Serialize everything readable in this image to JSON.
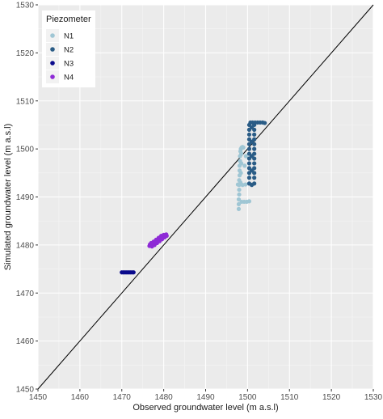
{
  "chart_data": {
    "type": "scatter",
    "xlabel": "Observed groundwater level (m a.s.l)",
    "ylabel": "Simulated groundwater level (m a.s.l)",
    "xlim": [
      1450,
      1530
    ],
    "ylim": [
      1450,
      1530
    ],
    "xticks": [
      1450,
      1460,
      1470,
      1480,
      1490,
      1500,
      1510,
      1520,
      1530
    ],
    "yticks": [
      1450,
      1460,
      1470,
      1480,
      1490,
      1500,
      1510,
      1520,
      1530
    ],
    "grid": true,
    "background": "#ebebeb",
    "reference_line": {
      "from": [
        1450,
        1450
      ],
      "to": [
        1530,
        1530
      ],
      "color": "#000000"
    },
    "legend": {
      "title": "Piezometer",
      "placement": "top-left"
    },
    "series": [
      {
        "name": "N1",
        "color": "#9fc6d4",
        "points": [
          [
            1497.9,
            1487.5
          ],
          [
            1497.9,
            1488.5
          ],
          [
            1497.9,
            1489.5
          ],
          [
            1498.0,
            1490.5
          ],
          [
            1498.0,
            1491.5
          ],
          [
            1498.0,
            1492.5
          ],
          [
            1498.0,
            1493.5
          ],
          [
            1498.1,
            1494.5
          ],
          [
            1498.1,
            1495.5
          ],
          [
            1498.1,
            1496.5
          ],
          [
            1498.2,
            1497.5
          ],
          [
            1498.2,
            1498.5
          ],
          [
            1498.3,
            1499.5
          ],
          [
            1498.4,
            1500.0
          ],
          [
            1498.6,
            1500.3
          ],
          [
            1498.8,
            1500.4
          ],
          [
            1499.0,
            1500.3
          ],
          [
            1498.5,
            1499.0
          ],
          [
            1498.5,
            1497.0
          ],
          [
            1498.4,
            1495.0
          ],
          [
            1498.3,
            1493.0
          ],
          [
            1498.8,
            1492.5
          ],
          [
            1499.5,
            1492.6
          ],
          [
            1498.6,
            1489.0
          ],
          [
            1499.2,
            1489.0
          ],
          [
            1499.8,
            1489.0
          ],
          [
            1500.4,
            1489.1
          ],
          [
            1499.3,
            1496.5
          ],
          [
            1499.6,
            1498.5
          ],
          [
            1497.7,
            1492.6
          ]
        ]
      },
      {
        "name": "N2",
        "color": "#2a5c86",
        "points": [
          [
            1500.4,
            1492.8
          ],
          [
            1500.4,
            1494.0
          ],
          [
            1500.4,
            1495.0
          ],
          [
            1500.4,
            1496.0
          ],
          [
            1500.4,
            1497.0
          ],
          [
            1500.4,
            1498.0
          ],
          [
            1500.4,
            1499.0
          ],
          [
            1500.4,
            1500.0
          ],
          [
            1500.4,
            1501.0
          ],
          [
            1500.4,
            1502.0
          ],
          [
            1500.4,
            1503.0
          ],
          [
            1500.4,
            1504.0
          ],
          [
            1500.4,
            1505.0
          ],
          [
            1500.7,
            1505.5
          ],
          [
            1501.2,
            1505.5
          ],
          [
            1501.8,
            1505.5
          ],
          [
            1502.4,
            1505.5
          ],
          [
            1503.0,
            1505.5
          ],
          [
            1503.6,
            1505.5
          ],
          [
            1504.1,
            1505.4
          ],
          [
            1501.6,
            1505.0
          ],
          [
            1501.6,
            1504.0
          ],
          [
            1501.6,
            1503.0
          ],
          [
            1501.6,
            1502.0
          ],
          [
            1501.6,
            1501.0
          ],
          [
            1501.6,
            1500.0
          ],
          [
            1501.6,
            1499.0
          ],
          [
            1501.6,
            1498.0
          ],
          [
            1501.6,
            1497.0
          ],
          [
            1501.6,
            1496.0
          ],
          [
            1501.6,
            1495.0
          ],
          [
            1501.6,
            1494.0
          ],
          [
            1501.6,
            1492.8
          ],
          [
            1501.0,
            1492.5
          ],
          [
            1501.0,
            1495.5
          ],
          [
            1501.0,
            1498.5
          ],
          [
            1501.0,
            1501.5
          ],
          [
            1501.0,
            1504.5
          ]
        ]
      },
      {
        "name": "N3",
        "color": "#0a0a8c",
        "points": [
          [
            1470.0,
            1474.3
          ],
          [
            1470.4,
            1474.3
          ],
          [
            1470.8,
            1474.3
          ],
          [
            1471.2,
            1474.3
          ],
          [
            1471.6,
            1474.3
          ],
          [
            1472.0,
            1474.3
          ],
          [
            1472.4,
            1474.3
          ],
          [
            1472.8,
            1474.3
          ]
        ]
      },
      {
        "name": "N4",
        "color": "#8e2bd6",
        "points": [
          [
            1476.6,
            1479.8
          ],
          [
            1477.2,
            1479.7
          ],
          [
            1477.8,
            1480.0
          ],
          [
            1478.4,
            1480.4
          ],
          [
            1479.0,
            1480.8
          ],
          [
            1479.6,
            1481.2
          ],
          [
            1480.2,
            1481.6
          ],
          [
            1480.7,
            1481.9
          ],
          [
            1480.6,
            1482.2
          ],
          [
            1480.0,
            1482.1
          ],
          [
            1479.4,
            1481.9
          ],
          [
            1478.8,
            1481.5
          ],
          [
            1478.2,
            1481.1
          ],
          [
            1477.6,
            1480.7
          ],
          [
            1477.0,
            1480.4
          ],
          [
            1476.7,
            1480.1
          ],
          [
            1477.5,
            1480.4
          ],
          [
            1478.5,
            1480.9
          ],
          [
            1479.5,
            1481.5
          ],
          [
            1480.3,
            1481.9
          ],
          [
            1477.1,
            1479.9
          ],
          [
            1478.0,
            1480.6
          ]
        ]
      }
    ]
  }
}
